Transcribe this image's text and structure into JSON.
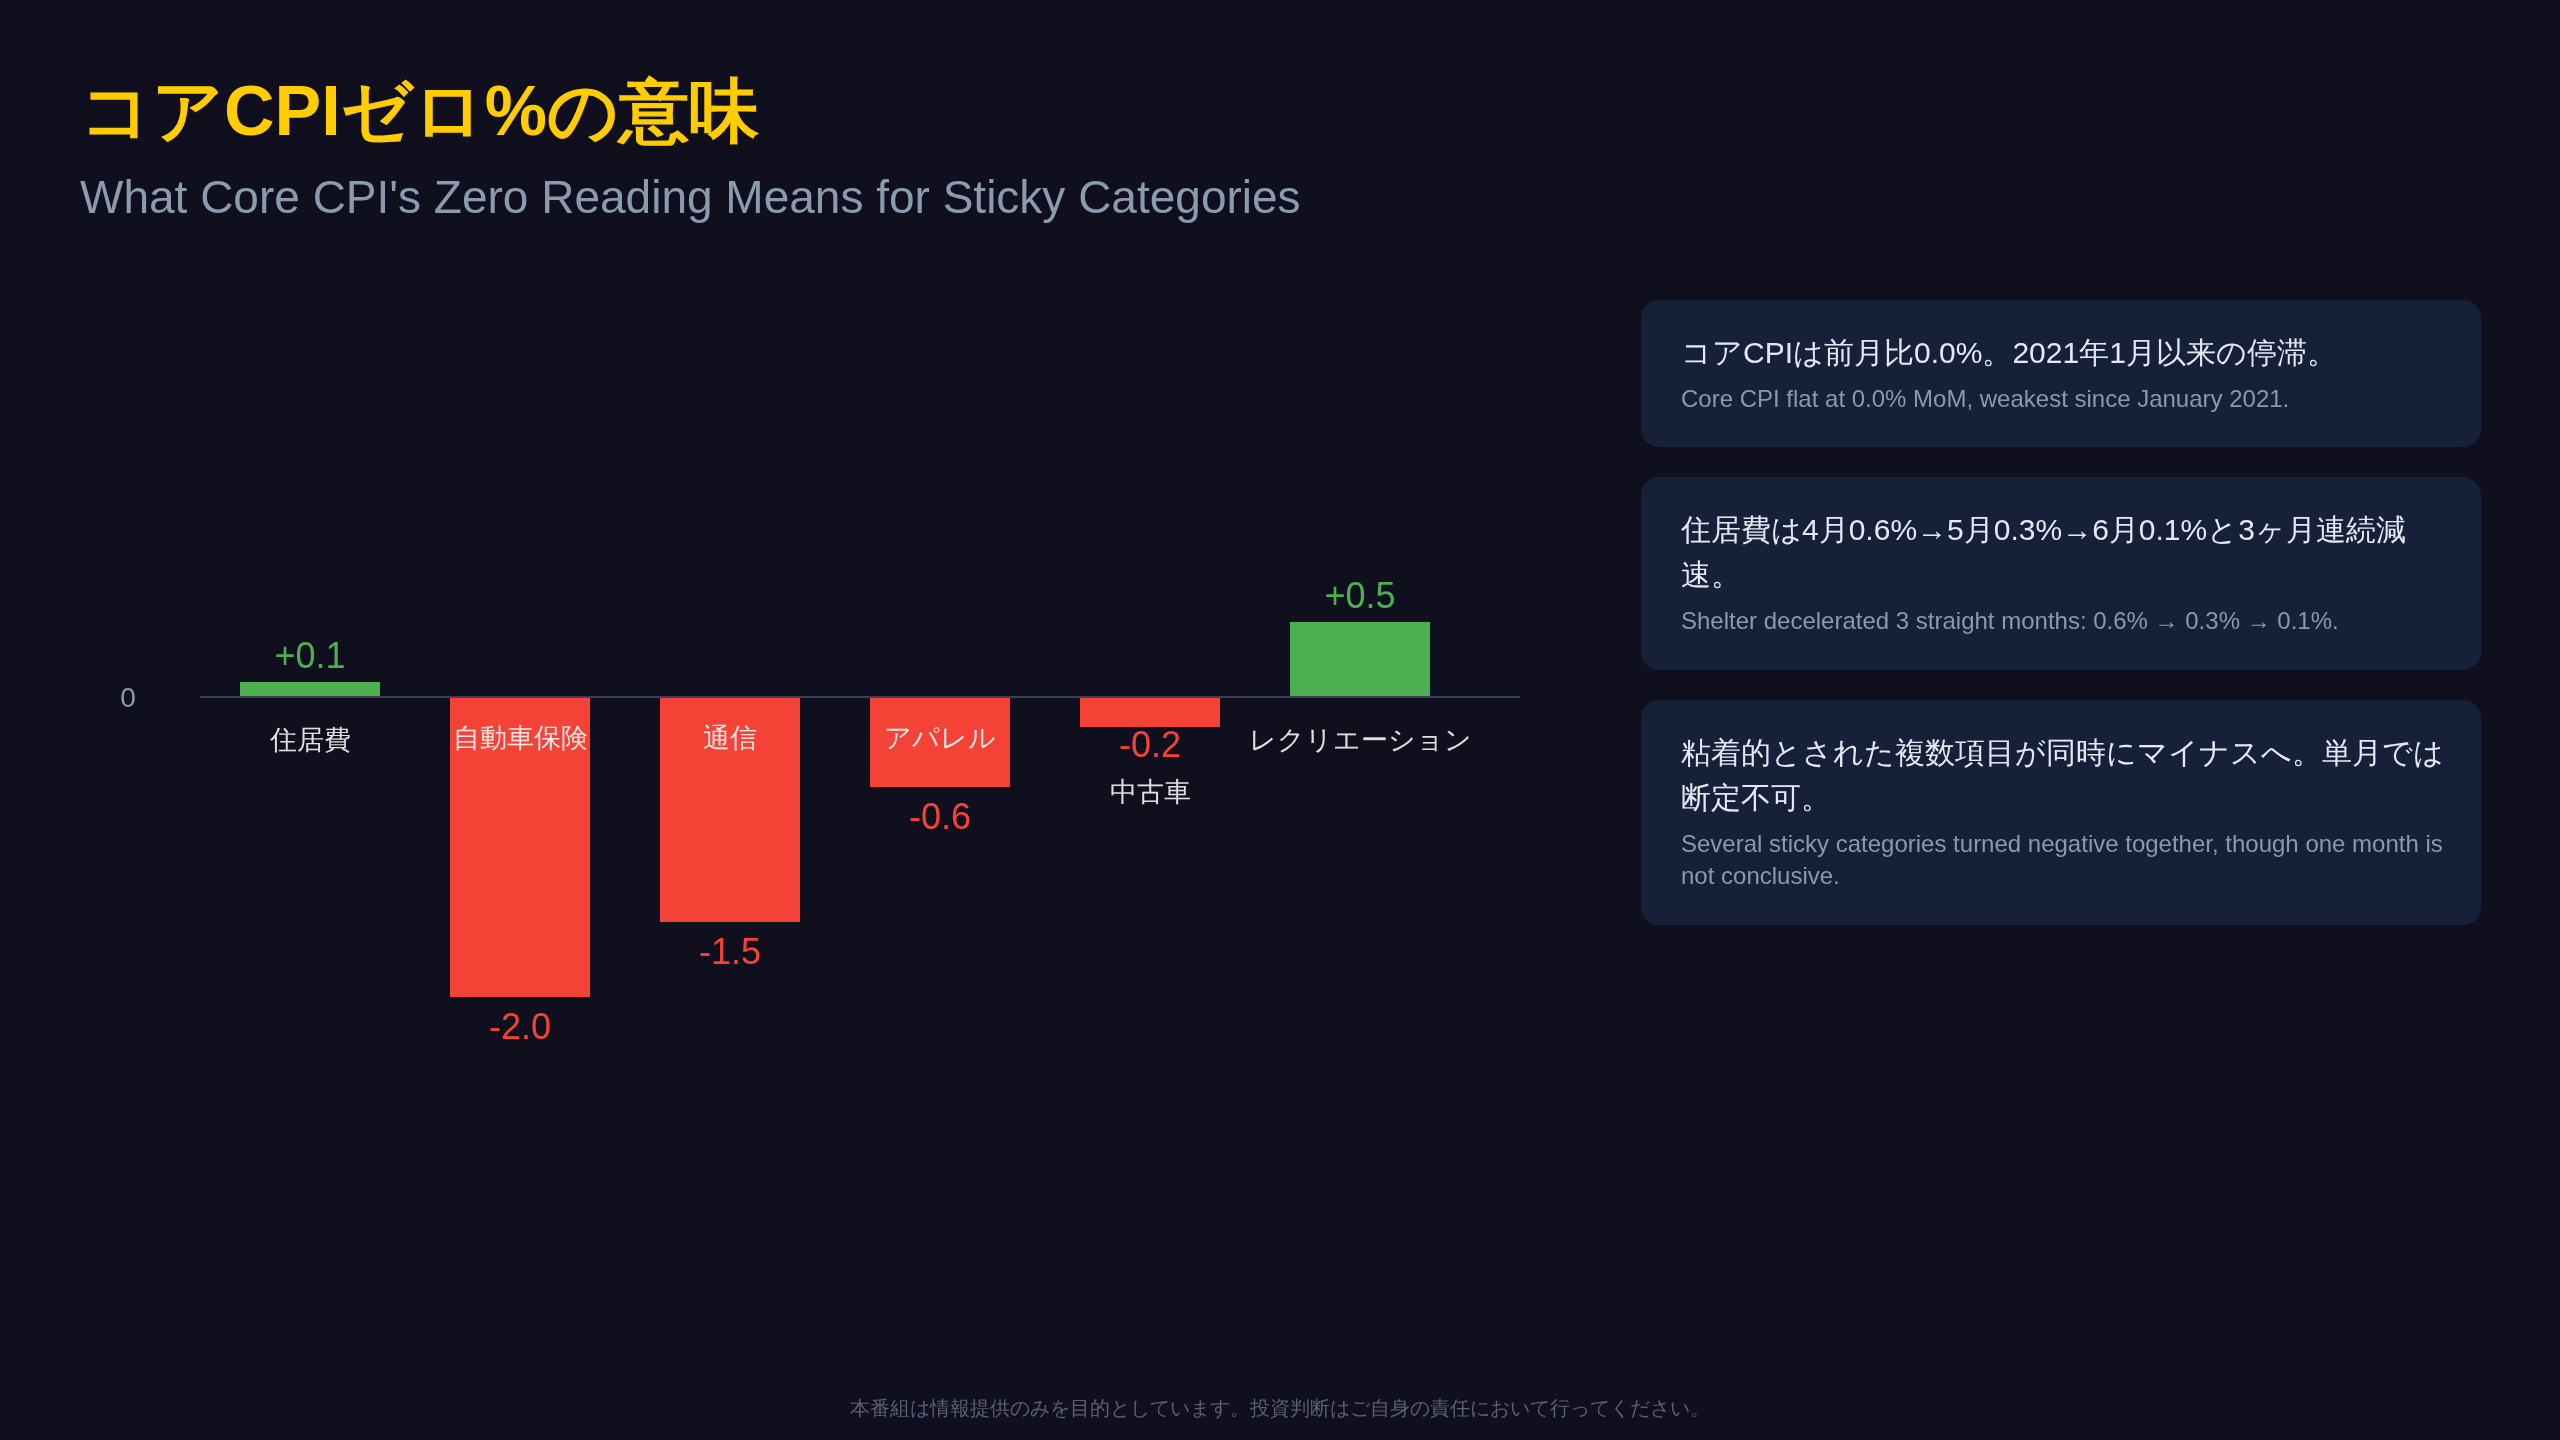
{
  "chart_data": [
    {
      "type": "bar",
      "title": "コアCPIゼロ%の意味",
      "subtitle": "What Core CPI's Zero Reading Means for Sticky Categories",
      "categories": [
        "住居費",
        "自動車保険",
        "通信",
        "アパレル",
        "中古車",
        "レクリエーション"
      ],
      "values": [
        0.1,
        -2.0,
        -1.5,
        -0.6,
        -0.2,
        0.5
      ],
      "colors": [
        "#4caf50",
        "#f44336",
        "#f44336",
        "#f44336",
        "#f44336",
        "#4caf50"
      ],
      "value_labels": [
        "+0.1",
        "-2.0",
        "-1.5",
        "-0.6",
        "-0.2",
        "+0.5"
      ],
      "annotations": [
        "0",
        "本番組は情報提供のみを目的としています。投資判断はご自身の責任において行ってください。"
      ]
    },
    {
      "type": "other",
      "annotations": [
        "コアCPIは前月比0.0%。2021年1月以来の停滞。",
        "Core CPI flat at 0.0% MoM, weakest since January 2021.",
        "住居費は4月0.6%→5月0.3%→6月0.1%と3ヶ月連続減速。",
        "Shelter decelerated 3 straight months: 0.6% → 0.3% → 0.1%.",
        "粘着的とされた複数項目が同時にマイナスへ。単月では断定不可。",
        "Several sticky categories turned negative together, though one month is not conclusive."
      ]
    }
  ]
}
